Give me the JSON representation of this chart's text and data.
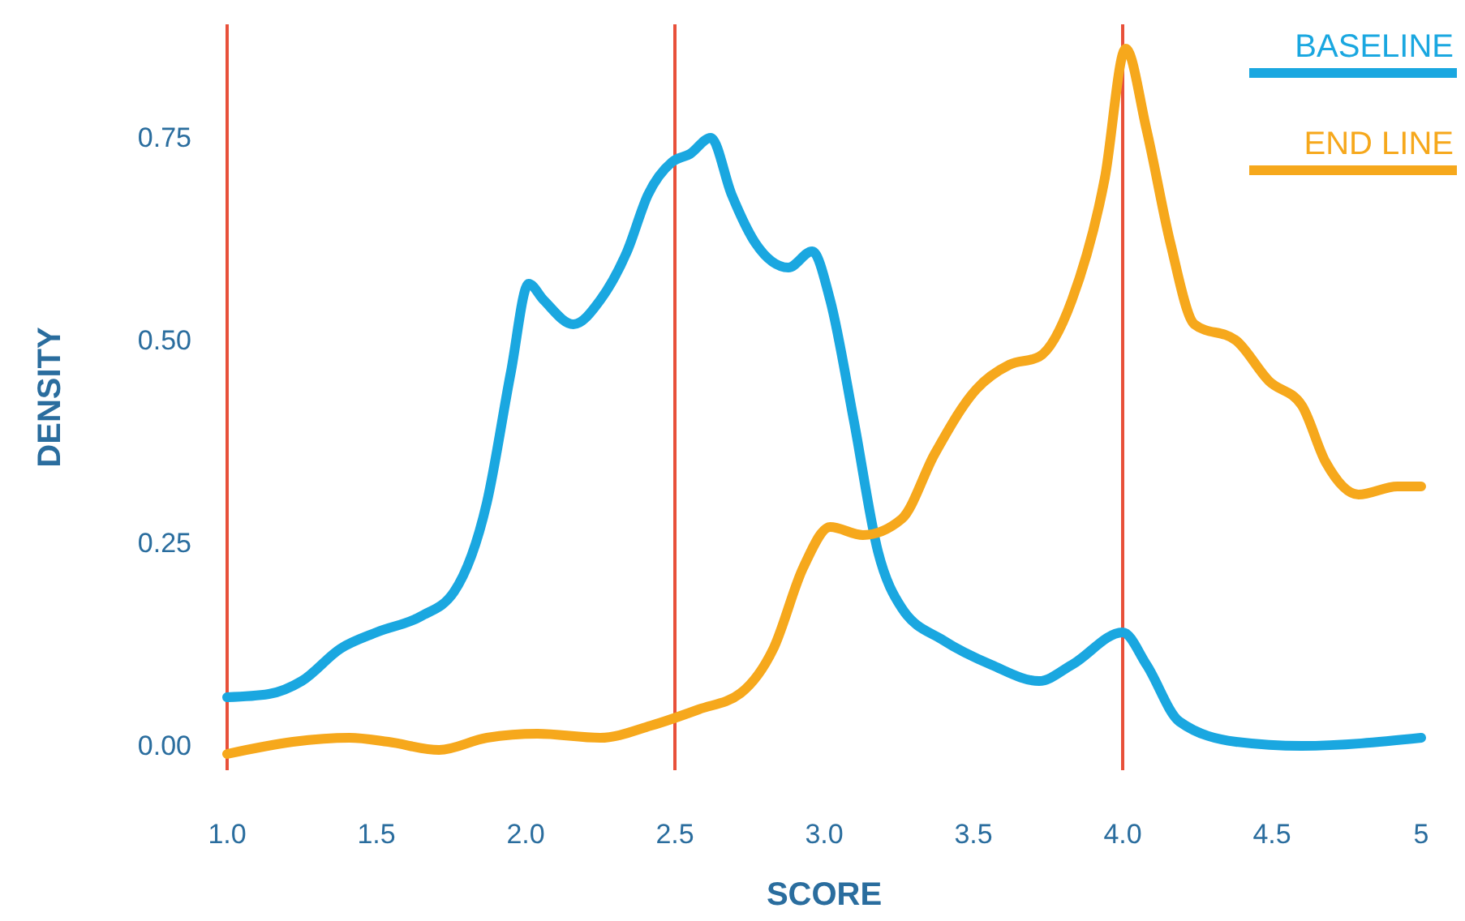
{
  "chart_data": {
    "type": "line",
    "xlabel": "SCORE",
    "ylabel": "DENSITY",
    "xlim": [
      1,
      5
    ],
    "ylim": [
      -0.03,
      0.89
    ],
    "xticks": [
      {
        "value": 1,
        "label": "1.0"
      },
      {
        "value": 1.5,
        "label": "1.5"
      },
      {
        "value": 2,
        "label": "2.0"
      },
      {
        "value": 2.5,
        "label": "2.5"
      },
      {
        "value": 3,
        "label": "3.0"
      },
      {
        "value": 3.5,
        "label": "3.5"
      },
      {
        "value": 4,
        "label": "4.0"
      },
      {
        "value": 4.5,
        "label": "4.5"
      },
      5
    ],
    "yticks": [
      {
        "value": 0,
        "label": "0.00"
      },
      {
        "value": 0.25,
        "label": "0.25"
      },
      {
        "value": 0.5,
        "label": "0.50"
      },
      {
        "value": 0.75,
        "label": "0.75"
      }
    ],
    "ref_lines": [
      {
        "axis": "x",
        "value": 2.5,
        "color": "#e8503a"
      },
      {
        "axis": "x",
        "value": 4,
        "color": "#e8503a"
      }
    ],
    "legend": "top right",
    "grid": false,
    "line_style": "solid",
    "marker": "none",
    "series": [
      {
        "name": "BASELINE",
        "color": "#1aa7e0",
        "x": [
          1.0,
          1.14,
          1.25,
          1.38,
          1.5,
          1.65,
          1.76,
          1.87,
          1.95,
          2.01,
          2.06,
          2.16,
          2.25,
          2.34,
          2.41,
          2.49,
          2.55,
          2.62,
          2.69,
          2.77,
          2.88,
          2.96,
          3.02,
          3.1,
          3.18,
          3.26,
          3.4,
          3.56,
          3.72,
          3.83,
          4.0,
          4.08,
          4.19,
          4.38,
          4.6,
          5.0
        ],
        "values": [
          0.06,
          0.064,
          0.08,
          0.12,
          0.14,
          0.16,
          0.19,
          0.3,
          0.46,
          0.57,
          0.55,
          0.52,
          0.55,
          0.61,
          0.68,
          0.72,
          0.73,
          0.75,
          0.68,
          0.62,
          0.59,
          0.61,
          0.55,
          0.4,
          0.24,
          0.17,
          0.13,
          0.1,
          0.08,
          0.1,
          0.14,
          0.1,
          0.03,
          0.005,
          0.0,
          0.01
        ]
      },
      {
        "name": "END LINE",
        "color": "#f6a81c",
        "x": [
          1.0,
          1.22,
          1.41,
          1.54,
          1.71,
          1.87,
          2.04,
          2.25,
          2.42,
          2.58,
          2.72,
          2.83,
          2.93,
          3.02,
          3.13,
          3.26,
          3.37,
          3.51,
          3.62,
          3.72,
          3.83,
          3.94,
          4.01,
          4.08,
          4.16,
          4.24,
          4.38,
          4.49,
          4.6,
          4.68,
          4.79,
          4.92,
          5.0
        ],
        "values": [
          -0.01,
          0.005,
          0.01,
          0.005,
          -0.005,
          0.01,
          0.015,
          0.01,
          0.025,
          0.045,
          0.065,
          0.12,
          0.22,
          0.27,
          0.26,
          0.28,
          0.36,
          0.44,
          0.47,
          0.48,
          0.55,
          0.7,
          0.86,
          0.76,
          0.62,
          0.52,
          0.5,
          0.45,
          0.42,
          0.35,
          0.31,
          0.32,
          0.32
        ]
      }
    ]
  }
}
